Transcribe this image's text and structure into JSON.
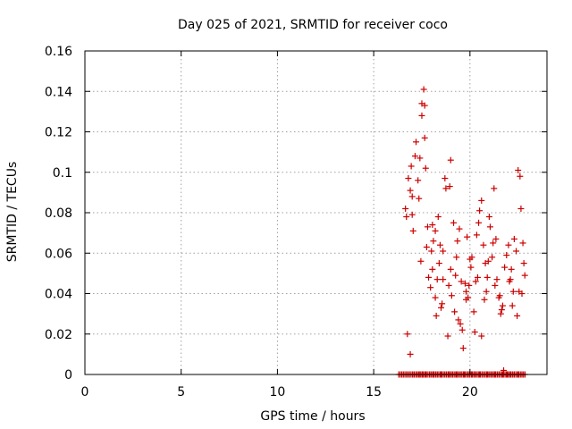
{
  "chart_data": {
    "type": "scatter",
    "title": "Day 025 of 2021, SRMTID for receiver coco",
    "xlabel": "GPS time / hours",
    "ylabel": "SRMTID / TECUs",
    "xlim": [
      0,
      24
    ],
    "ylim": [
      0,
      0.16
    ],
    "xticks": [
      0,
      5,
      10,
      15,
      20
    ],
    "xtick_labels": [
      "0",
      "5",
      "10",
      "15",
      "20"
    ],
    "yticks": [
      0,
      0.02,
      0.04,
      0.06,
      0.08,
      0.1,
      0.12,
      0.14,
      0.16
    ],
    "ytick_labels": [
      "0",
      "0.02",
      "0.04",
      "0.06",
      "0.08",
      "0.1",
      "0.12",
      "0.14",
      "0.16"
    ],
    "grid": true,
    "marker": "+",
    "color": "#cc0000",
    "series": [
      {
        "name": "SRMTID",
        "x": [
          16.65,
          16.7,
          16.8,
          16.9,
          16.95,
          17.0,
          17.05,
          17.15,
          17.2,
          17.3,
          17.35,
          17.45,
          17.5,
          17.6,
          17.65,
          17.7,
          17.75,
          17.8,
          17.85,
          17.95,
          18.0,
          18.05,
          18.1,
          18.2,
          18.25,
          18.3,
          18.4,
          18.45,
          18.55,
          18.6,
          18.7,
          18.75,
          18.85,
          18.9,
          19.0,
          19.05,
          19.15,
          19.2,
          19.3,
          19.35,
          19.45,
          19.5,
          19.6,
          19.65,
          19.75,
          19.8,
          19.9,
          19.95,
          20.05,
          20.1,
          20.2,
          20.3,
          20.35,
          20.45,
          20.5,
          20.6,
          20.7,
          20.75,
          20.85,
          20.9,
          21.0,
          21.05,
          21.15,
          21.2,
          21.3,
          21.4,
          21.5,
          21.55,
          21.65,
          21.7,
          21.8,
          21.9,
          22.0,
          22.05,
          22.15,
          22.25,
          22.3,
          22.4,
          22.5,
          22.6,
          22.65,
          22.75,
          22.8,
          22.85,
          16.75,
          16.9,
          17.1,
          17.25,
          17.4,
          17.55,
          17.7,
          17.9,
          18.1,
          18.3,
          18.5,
          18.7,
          18.9,
          19.1,
          19.3,
          19.5,
          19.7,
          19.9,
          20.1,
          20.3,
          20.5,
          20.7,
          20.9,
          21.1,
          21.3,
          21.5,
          21.7,
          21.9,
          22.1,
          22.3,
          22.5,
          22.7,
          17.4,
          17.65,
          18.2,
          18.35,
          18.6,
          19.0,
          19.25,
          19.55,
          19.8,
          20.0,
          20.25,
          20.6,
          20.95,
          21.25,
          21.6,
          21.95,
          22.2,
          22.45,
          22.7,
          17.0,
          17.5,
          18.05,
          18.5,
          18.95,
          19.4,
          19.85,
          20.4,
          20.8,
          21.35,
          21.75,
          22.1,
          22.55
        ],
        "y": [
          0.082,
          0.078,
          0.097,
          0.091,
          0.103,
          0.088,
          0.071,
          0.108,
          0.115,
          0.096,
          0.087,
          0.056,
          0.128,
          0.141,
          0.133,
          0.102,
          0.063,
          0.073,
          0.048,
          0.043,
          0.061,
          0.052,
          0.066,
          0.038,
          0.029,
          0.047,
          0.055,
          0.064,
          0.035,
          0.047,
          0.097,
          0.092,
          0.019,
          0.044,
          0.052,
          0.039,
          0.075,
          0.031,
          0.058,
          0.066,
          0.072,
          0.025,
          0.022,
          0.013,
          0.045,
          0.041,
          0.038,
          0.044,
          0.053,
          0.058,
          0.031,
          0.046,
          0.069,
          0.075,
          0.081,
          0.086,
          0.064,
          0.037,
          0.041,
          0.048,
          0.078,
          0.073,
          0.058,
          0.065,
          0.044,
          0.047,
          0.038,
          0.039,
          0.032,
          0.034,
          0.053,
          0.059,
          0.064,
          0.046,
          0.052,
          0.041,
          0.067,
          0.061,
          0.101,
          0.098,
          0.082,
          0.065,
          0.055,
          0.049,
          0.02,
          0.01,
          0.0,
          0.0,
          0.0,
          0.0,
          0.0,
          0.0,
          0.0,
          0.0,
          0.0,
          0.0,
          0.0,
          0.0,
          0.0,
          0.0,
          0.0,
          0.0,
          0.0,
          0.0,
          0.0,
          0.0,
          0.0,
          0.0,
          0.0,
          0.0,
          0.0,
          0.0,
          0.0,
          0.0,
          0.0,
          0.0,
          0.107,
          0.117,
          0.071,
          0.078,
          0.061,
          0.106,
          0.049,
          0.046,
          0.037,
          0.057,
          0.021,
          0.019,
          0.056,
          0.092,
          0.03,
          0.0,
          0.034,
          0.029,
          0.04,
          0.079,
          0.134,
          0.074,
          0.033,
          0.093,
          0.027,
          0.068,
          0.048,
          0.055,
          0.067,
          0.002,
          0.047,
          0.041
        ]
      }
    ],
    "baseline_points": {
      "x_start": 16.3,
      "x_end": 22.9,
      "step": 0.08,
      "y": 0
    }
  }
}
